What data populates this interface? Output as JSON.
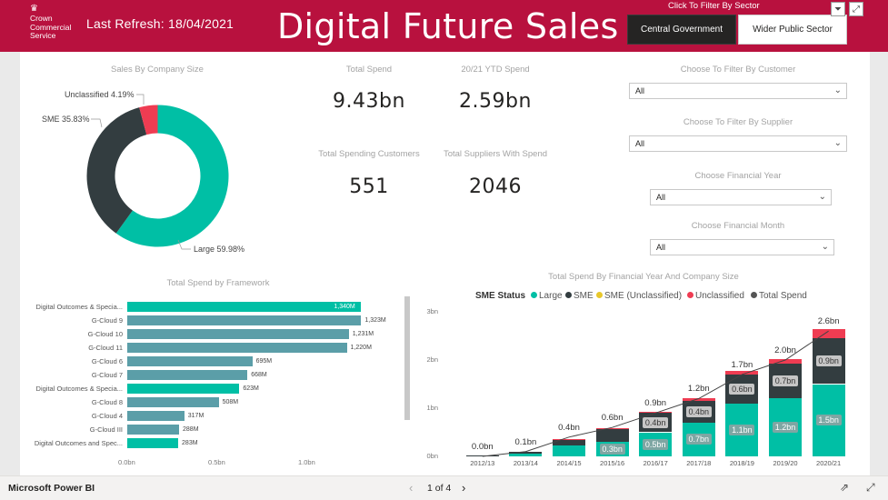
{
  "header": {
    "logo_crest_icon": "crest-icon",
    "logo_lines": [
      "Crown",
      "Commercial",
      "Service"
    ],
    "refresh_label": "Last Refresh:",
    "refresh_date": "18/04/2021",
    "title": "Digital Future Sales",
    "sector_prompt": "Click To Filter By Sector",
    "sector_buttons": [
      "Central Government",
      "Wider Public Sector"
    ],
    "filter_icon": "filter-icon",
    "expand_icon": "focus-mode-icon"
  },
  "donut": {
    "title": "Sales By Company Size",
    "label_unclassified": "Unclassified 4.19%",
    "label_sme": "SME 35.83%",
    "label_large": "Large 59.98%"
  },
  "kpis": {
    "total_spend_title": "Total Spend",
    "total_spend_value": "9.43bn",
    "ytd_title": "20/21 YTD Spend",
    "ytd_value": "2.59bn",
    "customers_title": "Total Spending Customers",
    "customers_value": "551",
    "suppliers_title": "Total Suppliers With Spend",
    "suppliers_value": "2046"
  },
  "slicers": [
    {
      "title": "Choose To Filter By Customer",
      "value": "All"
    },
    {
      "title": "Choose To Filter By Supplier",
      "value": "All"
    },
    {
      "title": "Choose Financial Year",
      "value": "All"
    },
    {
      "title": "Choose Financial Month",
      "value": "All"
    }
  ],
  "framework": {
    "title": "Total Spend by Framework",
    "x_ticks": [
      "0.0bn",
      "0.5bn",
      "1.0bn"
    ]
  },
  "stacked": {
    "title": "Total Spend By Financial Year And Company Size",
    "legend_title": "SME Status",
    "legend": [
      "Large",
      "SME",
      "SME (Unclassified)",
      "Unclassified",
      "Total Spend"
    ]
  },
  "bottom": {
    "brand": "Microsoft Power BI",
    "pager": "1 of 4",
    "share_icon": "share-icon",
    "fullscreen_icon": "fullscreen-icon"
  },
  "colors": {
    "header": "#b8113e",
    "large": "#00bfa5",
    "sme": "#333d40",
    "sme_unclassified": "#e8c72a",
    "unclassified": "#ef3c52",
    "total_spend": "#555555",
    "framework_primary": "#00bfa5",
    "framework_secondary": "#5b9ea8"
  },
  "chart_data": [
    {
      "type": "pie",
      "title": "Sales By Company Size",
      "categories": [
        "Large",
        "SME",
        "Unclassified"
      ],
      "values": [
        59.98,
        35.83,
        4.19
      ],
      "unit": "%",
      "donut": true
    },
    {
      "type": "bar",
      "orientation": "horizontal",
      "title": "Total Spend by Framework",
      "categories": [
        "Digital Outcomes & Specia...",
        "G-Cloud 9",
        "G-Cloud 10",
        "G-Cloud 11",
        "G-Cloud 6",
        "G-Cloud 7",
        "Digital Outcomes & Specia...",
        "G-Cloud 8",
        "G-Cloud 4",
        "G-Cloud III",
        "Digital Outcomes and Spec..."
      ],
      "values": [
        1340,
        1323,
        1231,
        1220,
        695,
        668,
        623,
        508,
        317,
        288,
        283
      ],
      "labels": [
        "1,340M",
        "1,323M",
        "1,231M",
        "1,220M",
        "695M",
        "668M",
        "623M",
        "508M",
        "317M",
        "288M",
        "283M"
      ],
      "highlight": [
        true,
        false,
        false,
        false,
        false,
        false,
        true,
        false,
        false,
        false,
        true
      ],
      "unit": "M",
      "xlim": [
        0,
        1300
      ],
      "x_ticks": [
        "0.0bn",
        "0.5bn",
        "1.0bn"
      ]
    },
    {
      "type": "bar",
      "stacked": true,
      "title": "Total Spend By Financial Year And Company Size",
      "categories": [
        "2012/13",
        "2013/14",
        "2014/15",
        "2015/16",
        "2016/17",
        "2017/18",
        "2018/19",
        "2019/20",
        "2020/21"
      ],
      "series": [
        {
          "name": "Large",
          "values": [
            0.01,
            0.05,
            0.22,
            0.3,
            0.5,
            0.7,
            1.1,
            1.2,
            1.5
          ],
          "labels": [
            "",
            "",
            "",
            "0.3bn",
            "0.5bn",
            "0.7bn",
            "1.1bn",
            "1.2bn",
            "1.5bn"
          ]
        },
        {
          "name": "SME",
          "values": [
            0.01,
            0.05,
            0.13,
            0.26,
            0.4,
            0.45,
            0.6,
            0.72,
            0.95
          ],
          "labels": [
            "",
            "",
            "",
            "",
            "0.4bn",
            "0.4bn",
            "0.6bn",
            "0.7bn",
            "0.9bn"
          ]
        },
        {
          "name": "SME (Unclassified)",
          "values": [
            0,
            0,
            0,
            0,
            0,
            0,
            0,
            0,
            0
          ]
        },
        {
          "name": "Unclassified",
          "values": [
            0,
            0,
            0.01,
            0.02,
            0.03,
            0.05,
            0.08,
            0.1,
            0.2
          ]
        }
      ],
      "total_line": {
        "name": "Total Spend",
        "values": [
          0.0,
          0.1,
          0.4,
          0.6,
          0.9,
          1.2,
          1.7,
          2.0,
          2.6
        ],
        "labels": [
          "0.0bn",
          "0.1bn",
          "0.4bn",
          "0.6bn",
          "0.9bn",
          "1.2bn",
          "1.7bn",
          "2.0bn",
          "2.6bn"
        ]
      },
      "y_ticks": [
        "0bn",
        "1bn",
        "2bn",
        "3bn"
      ],
      "ylim": [
        0,
        3
      ]
    }
  ]
}
